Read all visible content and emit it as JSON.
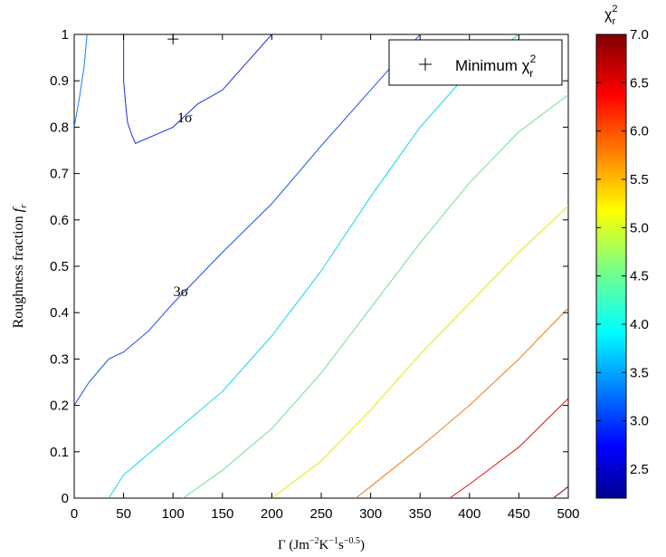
{
  "chart_data": {
    "type": "contour",
    "xlabel": "Γ  (Jm⁻²K⁻¹s⁻⁰·⁵)",
    "ylabel": "Roughness fraction f_r",
    "xlim": [
      0,
      500
    ],
    "ylim": [
      0,
      1
    ],
    "xticks": [
      0,
      50,
      100,
      150,
      200,
      250,
      300,
      350,
      400,
      450,
      500
    ],
    "yticks": [
      0,
      0.1,
      0.2,
      0.3,
      0.4,
      0.5,
      0.6,
      0.7,
      0.8,
      0.9,
      1
    ],
    "legend": {
      "entries": [
        "Minimum χ²_r"
      ],
      "position": "top-right"
    },
    "minimum_marker": {
      "x": 100,
      "y": 0.99,
      "label": "Minimum χ²_r"
    },
    "colorbar": {
      "title": "χ²_r",
      "min": 2.2,
      "max": 7.0,
      "ticks": [
        2.5,
        3.0,
        3.5,
        4.0,
        4.5,
        5.0,
        5.5,
        6.0,
        6.5,
        7.0
      ],
      "tick_labels": [
        "2.5",
        "3.0",
        "3.5",
        "4.0",
        "4.5",
        "5.0",
        "5.5",
        "6.0",
        "6.5",
        "7.0"
      ]
    },
    "annotations": [
      {
        "text": "1σ",
        "x": 112,
        "y": 0.82
      },
      {
        "text": "3σ",
        "x": 108,
        "y": 0.445
      }
    ],
    "contours": [
      {
        "level": 2.45,
        "color": "#1a2fd6",
        "points": [
          [
            50,
            1.0
          ],
          [
            50,
            0.9
          ],
          [
            52,
            0.85
          ],
          [
            54,
            0.81
          ],
          [
            58,
            0.785
          ],
          [
            62,
            0.765
          ],
          [
            100,
            0.8
          ],
          [
            125,
            0.85
          ],
          [
            150,
            0.88
          ],
          [
            175,
            0.94
          ],
          [
            200,
            1.0
          ]
        ]
      },
      {
        "level": 2.7,
        "color": "#1a7fe8",
        "points": [
          [
            0,
            0.8
          ],
          [
            5,
            0.86
          ],
          [
            10,
            0.93
          ],
          [
            13,
            1.0
          ]
        ]
      },
      {
        "level": 2.75,
        "color": "#1a4fe0",
        "points": [
          [
            0,
            0.2
          ],
          [
            15,
            0.25
          ],
          [
            35,
            0.3
          ],
          [
            50,
            0.315
          ],
          [
            75,
            0.36
          ],
          [
            100,
            0.42
          ],
          [
            150,
            0.53
          ],
          [
            200,
            0.635
          ],
          [
            250,
            0.76
          ],
          [
            300,
            0.88
          ],
          [
            350,
            1.0
          ]
        ]
      },
      {
        "level": 4.0,
        "color": "#12d6e6",
        "points": [
          [
            35,
            0
          ],
          [
            50,
            0.05
          ],
          [
            100,
            0.14
          ],
          [
            150,
            0.23
          ],
          [
            200,
            0.35
          ],
          [
            250,
            0.49
          ],
          [
            300,
            0.65
          ],
          [
            350,
            0.8
          ],
          [
            400,
            0.92
          ],
          [
            450,
            1.0
          ]
        ]
      },
      {
        "level": 4.5,
        "color": "#6ee08a",
        "points": [
          [
            110,
            0
          ],
          [
            150,
            0.06
          ],
          [
            200,
            0.15
          ],
          [
            250,
            0.27
          ],
          [
            300,
            0.41
          ],
          [
            350,
            0.55
          ],
          [
            400,
            0.68
          ],
          [
            450,
            0.79
          ],
          [
            500,
            0.87
          ]
        ]
      },
      {
        "level": 5.0,
        "color": "#e8e600",
        "points": [
          [
            200,
            0
          ],
          [
            250,
            0.08
          ],
          [
            300,
            0.19
          ],
          [
            350,
            0.31
          ],
          [
            400,
            0.42
          ],
          [
            450,
            0.53
          ],
          [
            500,
            0.63
          ]
        ]
      },
      {
        "level": 5.8,
        "color": "#f07a12",
        "points": [
          [
            285,
            0
          ],
          [
            300,
            0.025
          ],
          [
            350,
            0.11
          ],
          [
            400,
            0.2
          ],
          [
            450,
            0.3
          ],
          [
            500,
            0.41
          ]
        ]
      },
      {
        "level": 6.5,
        "color": "#e01414",
        "points": [
          [
            380,
            0
          ],
          [
            400,
            0.03
          ],
          [
            450,
            0.11
          ],
          [
            500,
            0.215
          ]
        ]
      },
      {
        "level": 7.0,
        "color": "#8a0a0a",
        "points": [
          [
            485,
            0
          ],
          [
            500,
            0.025
          ]
        ]
      }
    ]
  }
}
